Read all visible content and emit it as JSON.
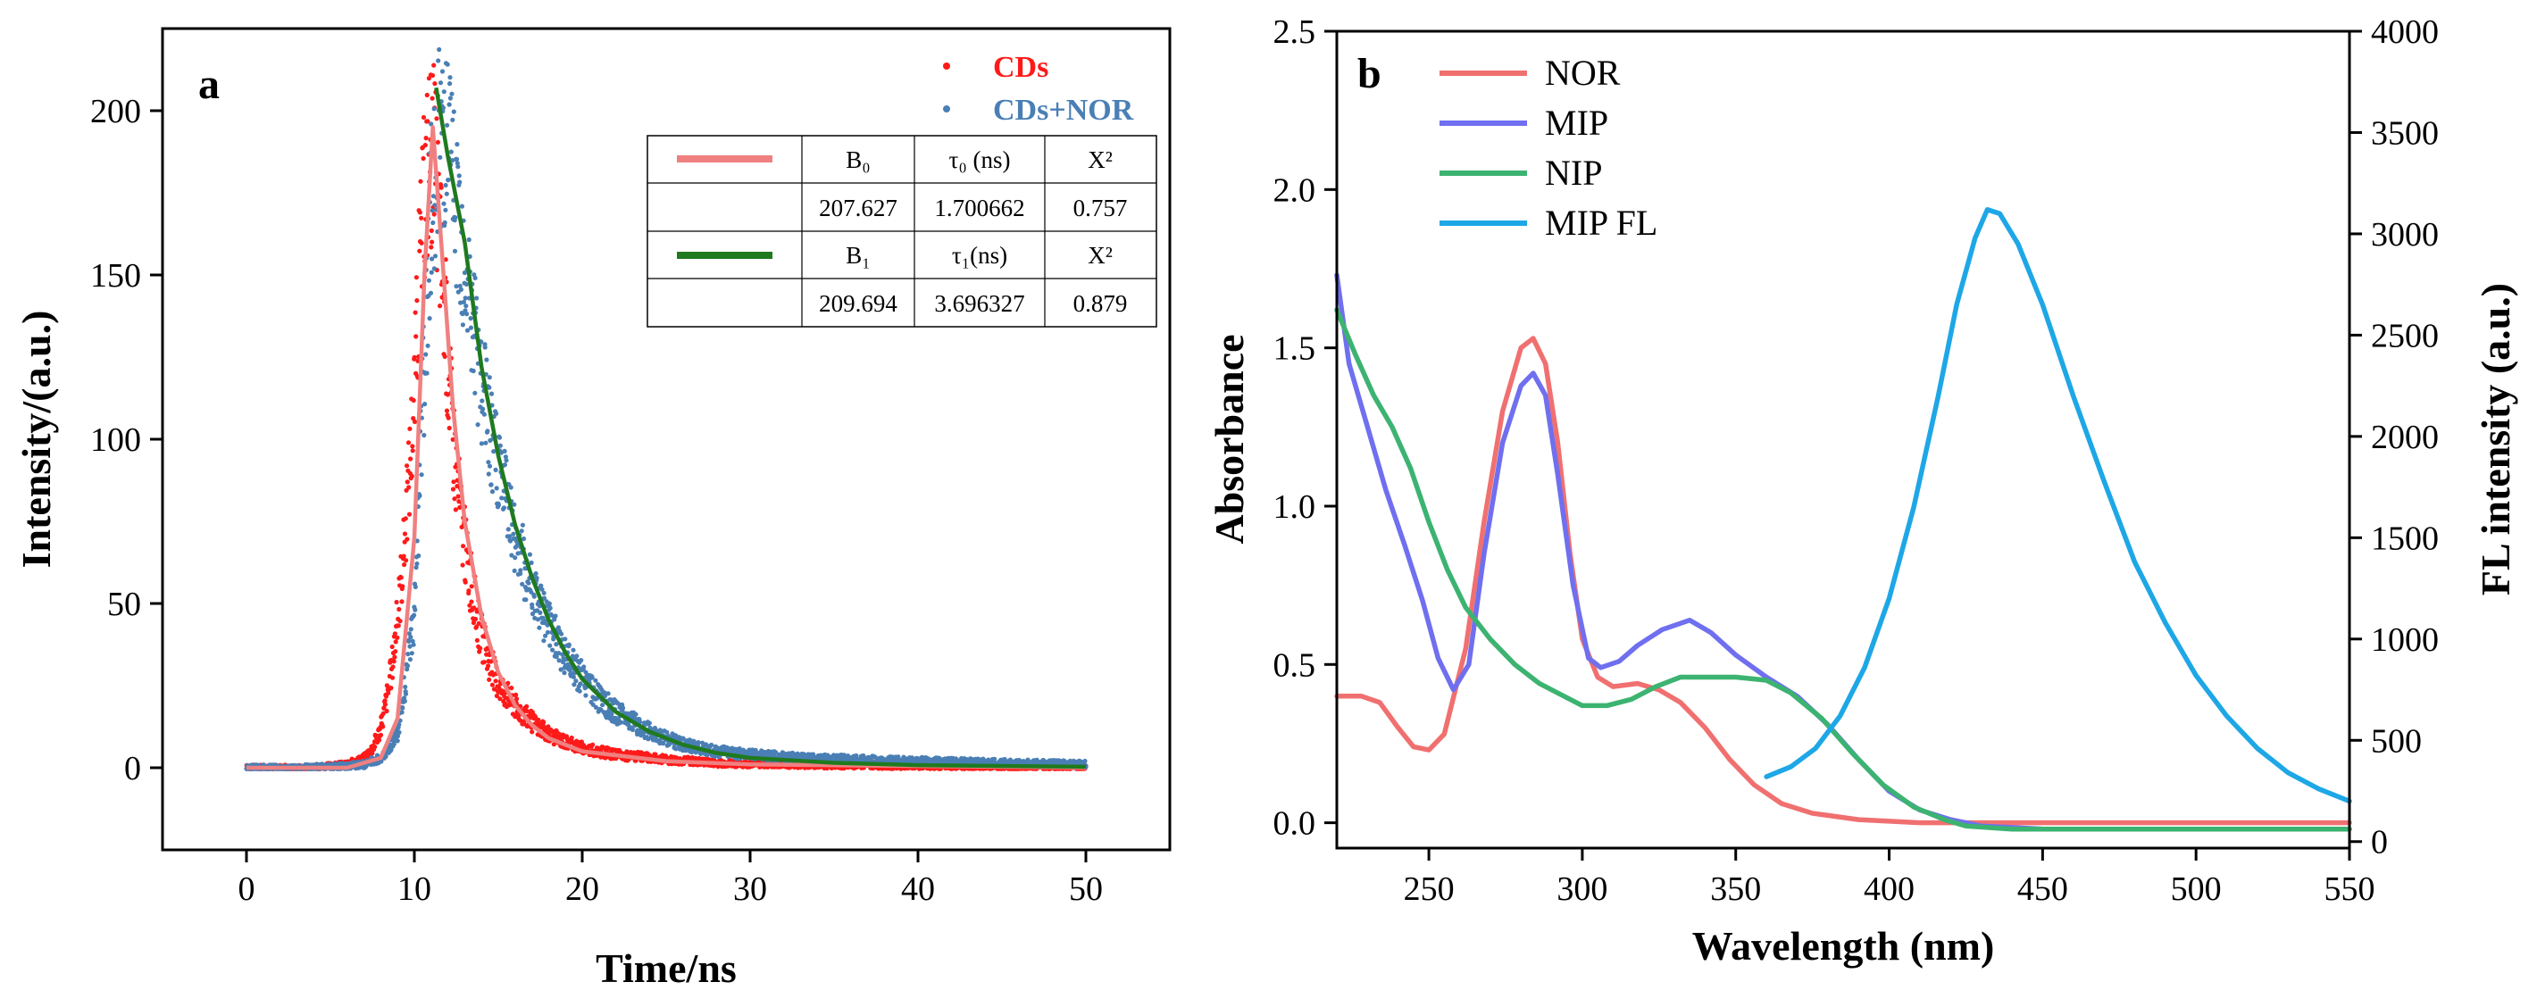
{
  "chart_data": [
    {
      "panel": "a",
      "type": "scatter",
      "title": "",
      "xlabel": "Time/ns",
      "ylabel": "Intensity/(a.u.)",
      "xlim": [
        -5,
        55
      ],
      "ylim": [
        -25,
        225
      ],
      "xticks": [
        0,
        10,
        20,
        30,
        40,
        50
      ],
      "yticks": [
        0,
        50,
        100,
        150,
        200
      ],
      "series": [
        {
          "name": "CDs",
          "kind": "points",
          "color": "#ff1a1a",
          "points": [
            [
              0,
              0
            ],
            [
              2,
              0
            ],
            [
              4,
              0
            ],
            [
              5,
              0.5
            ],
            [
              6,
              1
            ],
            [
              7,
              3
            ],
            [
              7.5,
              6
            ],
            [
              8,
              12
            ],
            [
              8.5,
              25
            ],
            [
              9,
              45
            ],
            [
              9.5,
              75
            ],
            [
              10,
              115
            ],
            [
              10.3,
              150
            ],
            [
              10.6,
              175
            ],
            [
              10.9,
              190
            ],
            [
              11.2,
              185
            ],
            [
              11.5,
              165
            ],
            [
              11.8,
              140
            ],
            [
              12.1,
              115
            ],
            [
              12.5,
              90
            ],
            [
              13,
              68
            ],
            [
              13.5,
              52
            ],
            [
              14,
              40
            ],
            [
              14.5,
              32
            ],
            [
              15,
              26
            ],
            [
              16,
              19
            ],
            [
              17,
              14
            ],
            [
              18,
              10
            ],
            [
              19,
              8
            ],
            [
              20,
              6
            ],
            [
              22,
              4
            ],
            [
              25,
              2.5
            ],
            [
              28,
              1.5
            ],
            [
              32,
              1
            ],
            [
              36,
              0.8
            ],
            [
              40,
              0.6
            ],
            [
              45,
              0.4
            ],
            [
              50,
              0.3
            ]
          ]
        },
        {
          "name": "CDs+NOR",
          "kind": "points",
          "color": "#4a7fb5",
          "points": [
            [
              0,
              0
            ],
            [
              3,
              0
            ],
            [
              6,
              0.5
            ],
            [
              7,
              1
            ],
            [
              8,
              3
            ],
            [
              9,
              10
            ],
            [
              10,
              45
            ],
            [
              10.5,
              110
            ],
            [
              11,
              170
            ],
            [
              11.5,
              195
            ],
            [
              12,
              185
            ],
            [
              12.5,
              170
            ],
            [
              13,
              150
            ],
            [
              13.5,
              132
            ],
            [
              14,
              116
            ],
            [
              15,
              90
            ],
            [
              16,
              70
            ],
            [
              17,
              55
            ],
            [
              18,
              43
            ],
            [
              19,
              34
            ],
            [
              20,
              27
            ],
            [
              21,
              21
            ],
            [
              22,
              17
            ],
            [
              24,
              11
            ],
            [
              26,
              7
            ],
            [
              28,
              5
            ],
            [
              30,
              4
            ],
            [
              33,
              3
            ],
            [
              36,
              2.5
            ],
            [
              40,
              2
            ],
            [
              45,
              1.5
            ],
            [
              50,
              1
            ]
          ]
        },
        {
          "name": "CDs fit",
          "kind": "line",
          "color": "#f08080",
          "points": [
            [
              0,
              0
            ],
            [
              6,
              0
            ],
            [
              8,
              3
            ],
            [
              9,
              15
            ],
            [
              10,
              70
            ],
            [
              10.6,
              150
            ],
            [
              11.1,
              195
            ],
            [
              11.6,
              160
            ],
            [
              12.3,
              110
            ],
            [
              13,
              75
            ],
            [
              14,
              46
            ],
            [
              15,
              29
            ],
            [
              16,
              19
            ],
            [
              17,
              13
            ],
            [
              18,
              9
            ],
            [
              20,
              5
            ],
            [
              25,
              2
            ],
            [
              30,
              1
            ],
            [
              50,
              0
            ]
          ]
        },
        {
          "name": "CDs+NOR fit",
          "kind": "line",
          "color": "#1f7a1f",
          "points": [
            [
              11.3,
              207
            ],
            [
              12,
              186
            ],
            [
              13,
              160
            ],
            [
              14,
              122
            ],
            [
              15,
              95
            ],
            [
              16,
              74
            ],
            [
              17,
              58
            ],
            [
              18,
              45
            ],
            [
              19,
              35
            ],
            [
              20,
              27
            ],
            [
              22,
              17
            ],
            [
              24,
              11
            ],
            [
              26,
              7
            ],
            [
              28,
              4.5
            ],
            [
              30,
              3
            ],
            [
              35,
              1.5
            ],
            [
              40,
              0.8
            ],
            [
              50,
              0.3
            ]
          ]
        }
      ],
      "legend": [
        {
          "label": "CDs",
          "color": "#ff1a1a"
        },
        {
          "label": "CDs+NOR",
          "color": "#4a7fb5"
        }
      ],
      "table": {
        "rows": [
          {
            "line_color": "#f08080",
            "b": "B₀",
            "tau": "τ₀ (ns)",
            "chi": "X²"
          },
          {
            "b": "207.627",
            "tau": "1.700662",
            "chi": "0.757"
          },
          {
            "line_color": "#1f7a1f",
            "b": "B₁",
            "tau": "τ₁(ns)",
            "chi": "X²"
          },
          {
            "b": "209.694",
            "tau": "3.696327",
            "chi": "0.879"
          }
        ]
      }
    },
    {
      "panel": "b",
      "type": "line",
      "title": "",
      "xlabel": "Wavelength (nm)",
      "ylabel": "Absorbance",
      "ylabel_right": "FL intensity (a.u.)",
      "xlim": [
        220,
        550
      ],
      "ylim": [
        -0.08,
        2.5
      ],
      "ylim_right": [
        -32,
        4000
      ],
      "xticks": [
        250,
        300,
        350,
        400,
        450,
        500,
        550
      ],
      "yticks": [
        0.0,
        0.5,
        1.0,
        1.5,
        2.0,
        2.5
      ],
      "yticks_right": [
        0,
        500,
        1000,
        1500,
        2000,
        2500,
        3000,
        3500,
        4000
      ],
      "series": [
        {
          "name": "NOR",
          "color": "#f07070",
          "axis": "left",
          "points": [
            [
              220,
              0.4
            ],
            [
              228,
              0.4
            ],
            [
              234,
              0.38
            ],
            [
              240,
              0.3
            ],
            [
              245,
              0.24
            ],
            [
              250,
              0.23
            ],
            [
              255,
              0.28
            ],
            [
              262,
              0.55
            ],
            [
              268,
              0.95
            ],
            [
              274,
              1.3
            ],
            [
              280,
              1.5
            ],
            [
              284,
              1.53
            ],
            [
              288,
              1.45
            ],
            [
              292,
              1.2
            ],
            [
              296,
              0.85
            ],
            [
              300,
              0.58
            ],
            [
              305,
              0.46
            ],
            [
              310,
              0.43
            ],
            [
              318,
              0.44
            ],
            [
              325,
              0.42
            ],
            [
              332,
              0.38
            ],
            [
              340,
              0.3
            ],
            [
              348,
              0.2
            ],
            [
              356,
              0.12
            ],
            [
              365,
              0.06
            ],
            [
              375,
              0.03
            ],
            [
              390,
              0.01
            ],
            [
              410,
              0.0
            ],
            [
              450,
              0.0
            ],
            [
              550,
              0.0
            ]
          ]
        },
        {
          "name": "MIP",
          "color": "#6f6fef",
          "axis": "left",
          "points": [
            [
              220,
              1.73
            ],
            [
              224,
              1.45
            ],
            [
              230,
              1.25
            ],
            [
              236,
              1.05
            ],
            [
              242,
              0.88
            ],
            [
              248,
              0.7
            ],
            [
              253,
              0.52
            ],
            [
              258,
              0.42
            ],
            [
              263,
              0.5
            ],
            [
              268,
              0.85
            ],
            [
              274,
              1.2
            ],
            [
              280,
              1.38
            ],
            [
              284,
              1.42
            ],
            [
              288,
              1.35
            ],
            [
              292,
              1.1
            ],
            [
              297,
              0.75
            ],
            [
              302,
              0.52
            ],
            [
              306,
              0.49
            ],
            [
              312,
              0.51
            ],
            [
              318,
              0.56
            ],
            [
              326,
              0.61
            ],
            [
              335,
              0.64
            ],
            [
              342,
              0.6
            ],
            [
              350,
              0.53
            ],
            [
              360,
              0.46
            ],
            [
              370,
              0.4
            ],
            [
              380,
              0.31
            ],
            [
              390,
              0.2
            ],
            [
              400,
              0.1
            ],
            [
              410,
              0.04
            ],
            [
              420,
              0.01
            ],
            [
              430,
              -0.01
            ],
            [
              450,
              -0.02
            ],
            [
              550,
              -0.02
            ]
          ]
        },
        {
          "name": "NIP",
          "color": "#3cb371",
          "axis": "left",
          "points": [
            [
              220,
              1.62
            ],
            [
              226,
              1.48
            ],
            [
              232,
              1.35
            ],
            [
              238,
              1.25
            ],
            [
              244,
              1.12
            ],
            [
              250,
              0.95
            ],
            [
              256,
              0.8
            ],
            [
              262,
              0.68
            ],
            [
              270,
              0.58
            ],
            [
              278,
              0.5
            ],
            [
              286,
              0.44
            ],
            [
              294,
              0.4
            ],
            [
              300,
              0.37
            ],
            [
              308,
              0.37
            ],
            [
              316,
              0.39
            ],
            [
              324,
              0.43
            ],
            [
              332,
              0.46
            ],
            [
              340,
              0.46
            ],
            [
              350,
              0.46
            ],
            [
              360,
              0.45
            ],
            [
              368,
              0.41
            ],
            [
              378,
              0.33
            ],
            [
              388,
              0.22
            ],
            [
              398,
              0.12
            ],
            [
              408,
              0.05
            ],
            [
              418,
              0.01
            ],
            [
              425,
              -0.01
            ],
            [
              440,
              -0.02
            ],
            [
              550,
              -0.02
            ]
          ]
        },
        {
          "name": "MIP FL",
          "color": "#1ea7e6",
          "axis": "right",
          "points": [
            [
              360,
              320
            ],
            [
              368,
              370
            ],
            [
              376,
              460
            ],
            [
              384,
              620
            ],
            [
              392,
              860
            ],
            [
              400,
              1200
            ],
            [
              408,
              1650
            ],
            [
              416,
              2200
            ],
            [
              422,
              2650
            ],
            [
              428,
              2980
            ],
            [
              432,
              3120
            ],
            [
              436,
              3100
            ],
            [
              442,
              2950
            ],
            [
              450,
              2650
            ],
            [
              460,
              2200
            ],
            [
              470,
              1780
            ],
            [
              480,
              1380
            ],
            [
              490,
              1080
            ],
            [
              500,
              820
            ],
            [
              510,
              620
            ],
            [
              520,
              460
            ],
            [
              530,
              340
            ],
            [
              540,
              260
            ],
            [
              550,
              200
            ]
          ]
        }
      ],
      "legend": [
        {
          "label": "NOR",
          "color": "#f07070"
        },
        {
          "label": "MIP",
          "color": "#6f6fef"
        },
        {
          "label": "NIP",
          "color": "#3cb371"
        },
        {
          "label": "MIP FL",
          "color": "#1ea7e6"
        }
      ]
    }
  ],
  "labels": {
    "panel_a": "a",
    "panel_b": "b"
  }
}
